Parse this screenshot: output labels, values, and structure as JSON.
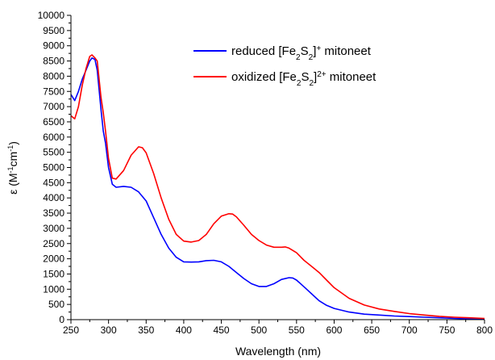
{
  "chart_data": {
    "type": "line",
    "xlabel": "Wavelength (nm)",
    "ylabel": "ε (M⁻¹cm⁻¹)",
    "ylabel_parts": {
      "prefix": "ε (M",
      "sup1": "-1",
      "middle": "cm",
      "sup2": "-1",
      "suffix": ")"
    },
    "xlim": [
      250,
      800
    ],
    "ylim": [
      0,
      10000
    ],
    "x_ticks": [
      250,
      300,
      350,
      400,
      450,
      500,
      550,
      600,
      650,
      700,
      750,
      800
    ],
    "y_ticks": [
      0,
      500,
      1000,
      1500,
      2000,
      2500,
      3000,
      3500,
      4000,
      4500,
      5000,
      5500,
      6000,
      6500,
      7000,
      7500,
      8000,
      8500,
      9000,
      9500,
      10000
    ],
    "legend_position": "top-right",
    "grid": false,
    "series": [
      {
        "name": "reduced [Fe2S2]+ mitoneet",
        "legend": {
          "pre": "reduced [Fe",
          "sub1": "2",
          "mid": "S",
          "sub2": "2",
          "close": "]",
          "sup": "+",
          "post": " mitoneet"
        },
        "color": "#0000ff",
        "x": [
          250,
          255,
          260,
          265,
          270,
          275,
          278,
          282,
          285,
          290,
          293,
          296,
          300,
          305,
          310,
          320,
          330,
          340,
          350,
          360,
          370,
          380,
          390,
          400,
          410,
          420,
          430,
          440,
          450,
          460,
          470,
          480,
          490,
          500,
          510,
          520,
          530,
          540,
          545,
          550,
          560,
          570,
          580,
          590,
          600,
          620,
          640,
          660,
          680,
          700,
          720,
          740,
          760,
          780,
          800
        ],
        "y": [
          7400,
          7200,
          7500,
          7900,
          8200,
          8500,
          8600,
          8550,
          8200,
          6900,
          6200,
          5800,
          5000,
          4450,
          4350,
          4380,
          4350,
          4200,
          3900,
          3350,
          2800,
          2350,
          2050,
          1900,
          1890,
          1900,
          1940,
          1950,
          1900,
          1750,
          1550,
          1350,
          1180,
          1090,
          1090,
          1180,
          1320,
          1380,
          1370,
          1300,
          1080,
          850,
          620,
          470,
          370,
          250,
          180,
          150,
          120,
          100,
          80,
          60,
          40,
          25,
          10
        ]
      },
      {
        "name": "oxidized [Fe2S2]2+ mitoneet",
        "legend": {
          "pre": "oxidized [Fe",
          "sub1": "2",
          "mid": "S",
          "sub2": "2",
          "close": "]",
          "sup": "2+",
          "post": " mitoneet"
        },
        "color": "#ff0000",
        "x": [
          250,
          255,
          260,
          265,
          270,
          275,
          278,
          282,
          285,
          290,
          293,
          296,
          300,
          305,
          310,
          320,
          330,
          340,
          345,
          350,
          360,
          370,
          380,
          390,
          400,
          410,
          420,
          430,
          440,
          450,
          460,
          465,
          470,
          480,
          490,
          500,
          510,
          520,
          530,
          535,
          540,
          550,
          560,
          570,
          580,
          590,
          600,
          620,
          640,
          660,
          680,
          700,
          720,
          740,
          760,
          780,
          800
        ],
        "y": [
          6700,
          6600,
          7000,
          7700,
          8250,
          8650,
          8700,
          8600,
          8500,
          7300,
          6800,
          6200,
          5300,
          4650,
          4620,
          4900,
          5400,
          5680,
          5650,
          5480,
          4800,
          4000,
          3300,
          2800,
          2580,
          2550,
          2600,
          2800,
          3150,
          3400,
          3480,
          3470,
          3380,
          3100,
          2800,
          2600,
          2450,
          2380,
          2380,
          2390,
          2350,
          2200,
          1950,
          1750,
          1550,
          1300,
          1050,
          700,
          480,
          350,
          270,
          200,
          150,
          110,
          80,
          60,
          40
        ]
      }
    ]
  }
}
